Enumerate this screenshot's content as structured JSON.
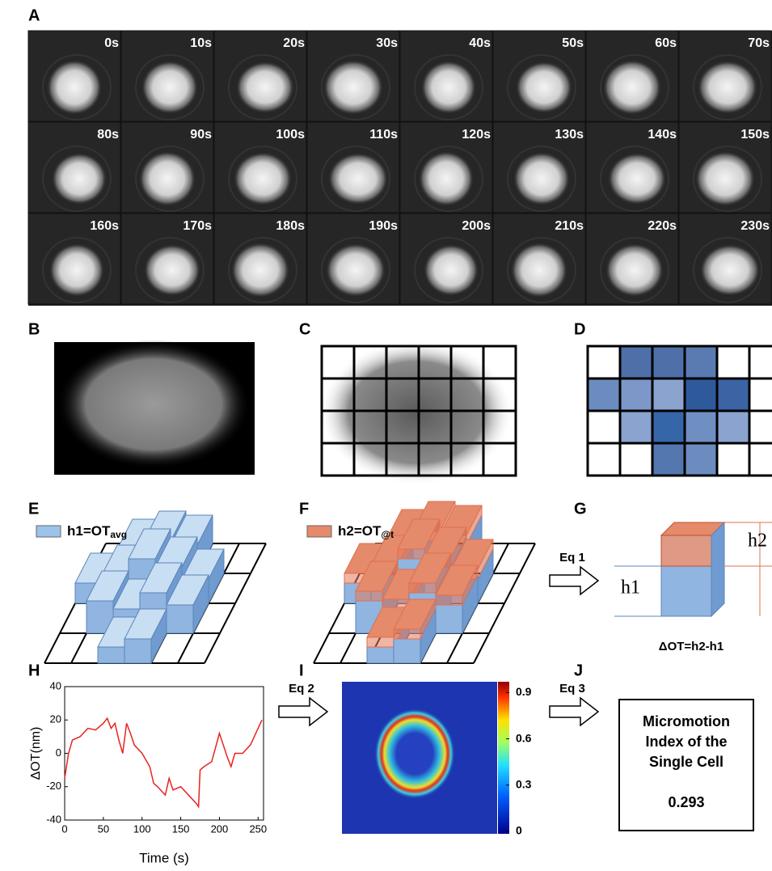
{
  "panel_labels": [
    "A",
    "B",
    "C",
    "D",
    "E",
    "F",
    "G",
    "H",
    "I",
    "J"
  ],
  "panel_a": {
    "times": [
      "0s",
      "10s",
      "20s",
      "30s",
      "40s",
      "50s",
      "60s",
      "70s",
      "80s",
      "90s",
      "100s",
      "110s",
      "120s",
      "130s",
      "140s",
      "150s",
      "160s",
      "170s",
      "180s",
      "190s",
      "200s",
      "210s",
      "220s",
      "230s"
    ]
  },
  "panel_e": {
    "legend": "h1=OT",
    "legend_sub": "avg"
  },
  "panel_f": {
    "legend": "h2=OT",
    "legend_sub": "@t"
  },
  "panel_g": {
    "arrow": "Eq 1",
    "h1": "h1",
    "h2": "h2",
    "caption": "ΔOT=h2-h1"
  },
  "panel_i": {
    "arrow": "Eq 2",
    "colorbar": {
      "lim": [
        0,
        0.97
      ],
      "ticks": [
        0,
        0.3,
        0.6,
        0.9
      ]
    }
  },
  "panel_j": {
    "arrow": "Eq 3",
    "lines": [
      "Micromotion",
      "Index of the",
      "Single Cell"
    ],
    "value": 0.293
  },
  "chart_data": {
    "type": "line",
    "ylabel": "ΔOT(nm)",
    "xlabel": "Time (s)",
    "color": "#e8231f",
    "x": [
      0,
      5,
      10,
      20,
      30,
      40,
      50,
      55,
      60,
      65,
      70,
      75,
      80,
      85,
      90,
      100,
      110,
      115,
      120,
      130,
      135,
      140,
      150,
      160,
      170,
      173,
      175,
      180,
      190,
      200,
      205,
      210,
      215,
      220,
      230,
      240,
      250,
      255
    ],
    "values": [
      -15,
      0,
      8,
      10,
      15,
      14,
      18,
      21,
      15,
      18,
      8,
      0,
      18,
      12,
      5,
      0,
      -8,
      -18,
      -20,
      -25,
      -15,
      -22,
      -20,
      -25,
      -30,
      -32,
      -10,
      -8,
      -5,
      12,
      5,
      -2,
      -8,
      0,
      0,
      5,
      15,
      20
    ],
    "xlim": [
      0,
      257
    ],
    "ylim": [
      -40,
      40
    ],
    "xticks": [
      0,
      50,
      100,
      150,
      200,
      250
    ],
    "yticks": [
      -40,
      -20,
      0,
      20,
      40
    ]
  }
}
